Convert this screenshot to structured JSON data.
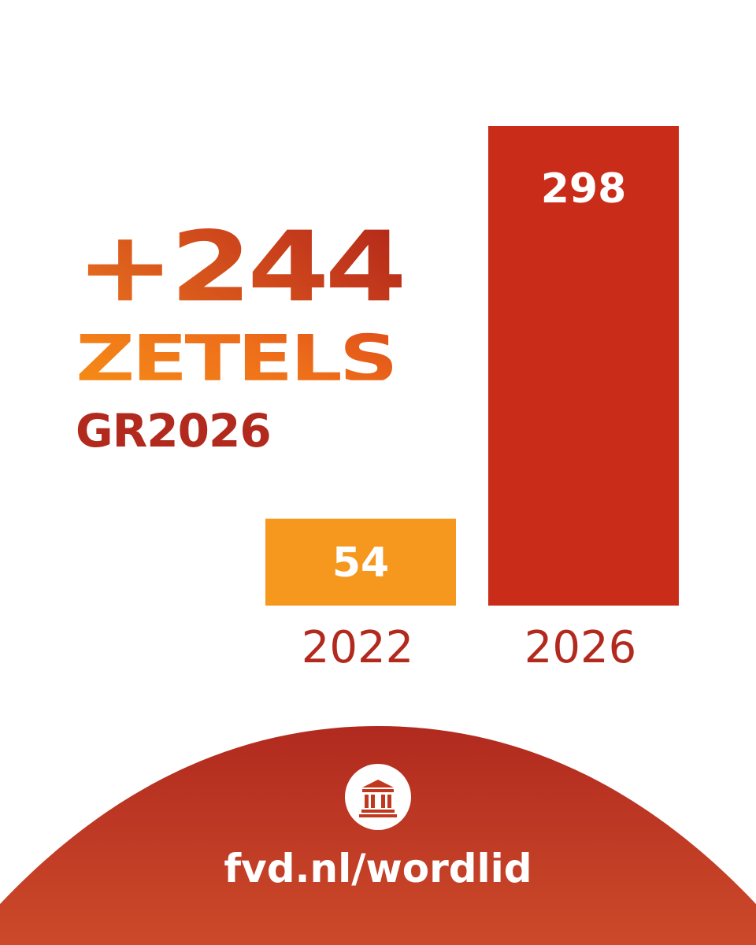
{
  "headline": {
    "number": "+244",
    "unit": "ZETELS",
    "label": "GR2026"
  },
  "chart_data": {
    "type": "bar",
    "categories": [
      "2022",
      "2026"
    ],
    "values": [
      54,
      298
    ],
    "value_labels": [
      "54",
      "298"
    ],
    "title": "",
    "xlabel": "",
    "ylabel": "",
    "ylim": [
      0,
      298
    ],
    "grid": false,
    "legend": "none",
    "colors": [
      "#f6971e",
      "#c92d1a"
    ],
    "label_color": "#b22a1e"
  },
  "footer": {
    "logo_icon": "parliament-building-icon",
    "link_text": "fvd.nl/wordlid",
    "background_colors": [
      "#b12a1f",
      "#cc4a2a"
    ]
  }
}
